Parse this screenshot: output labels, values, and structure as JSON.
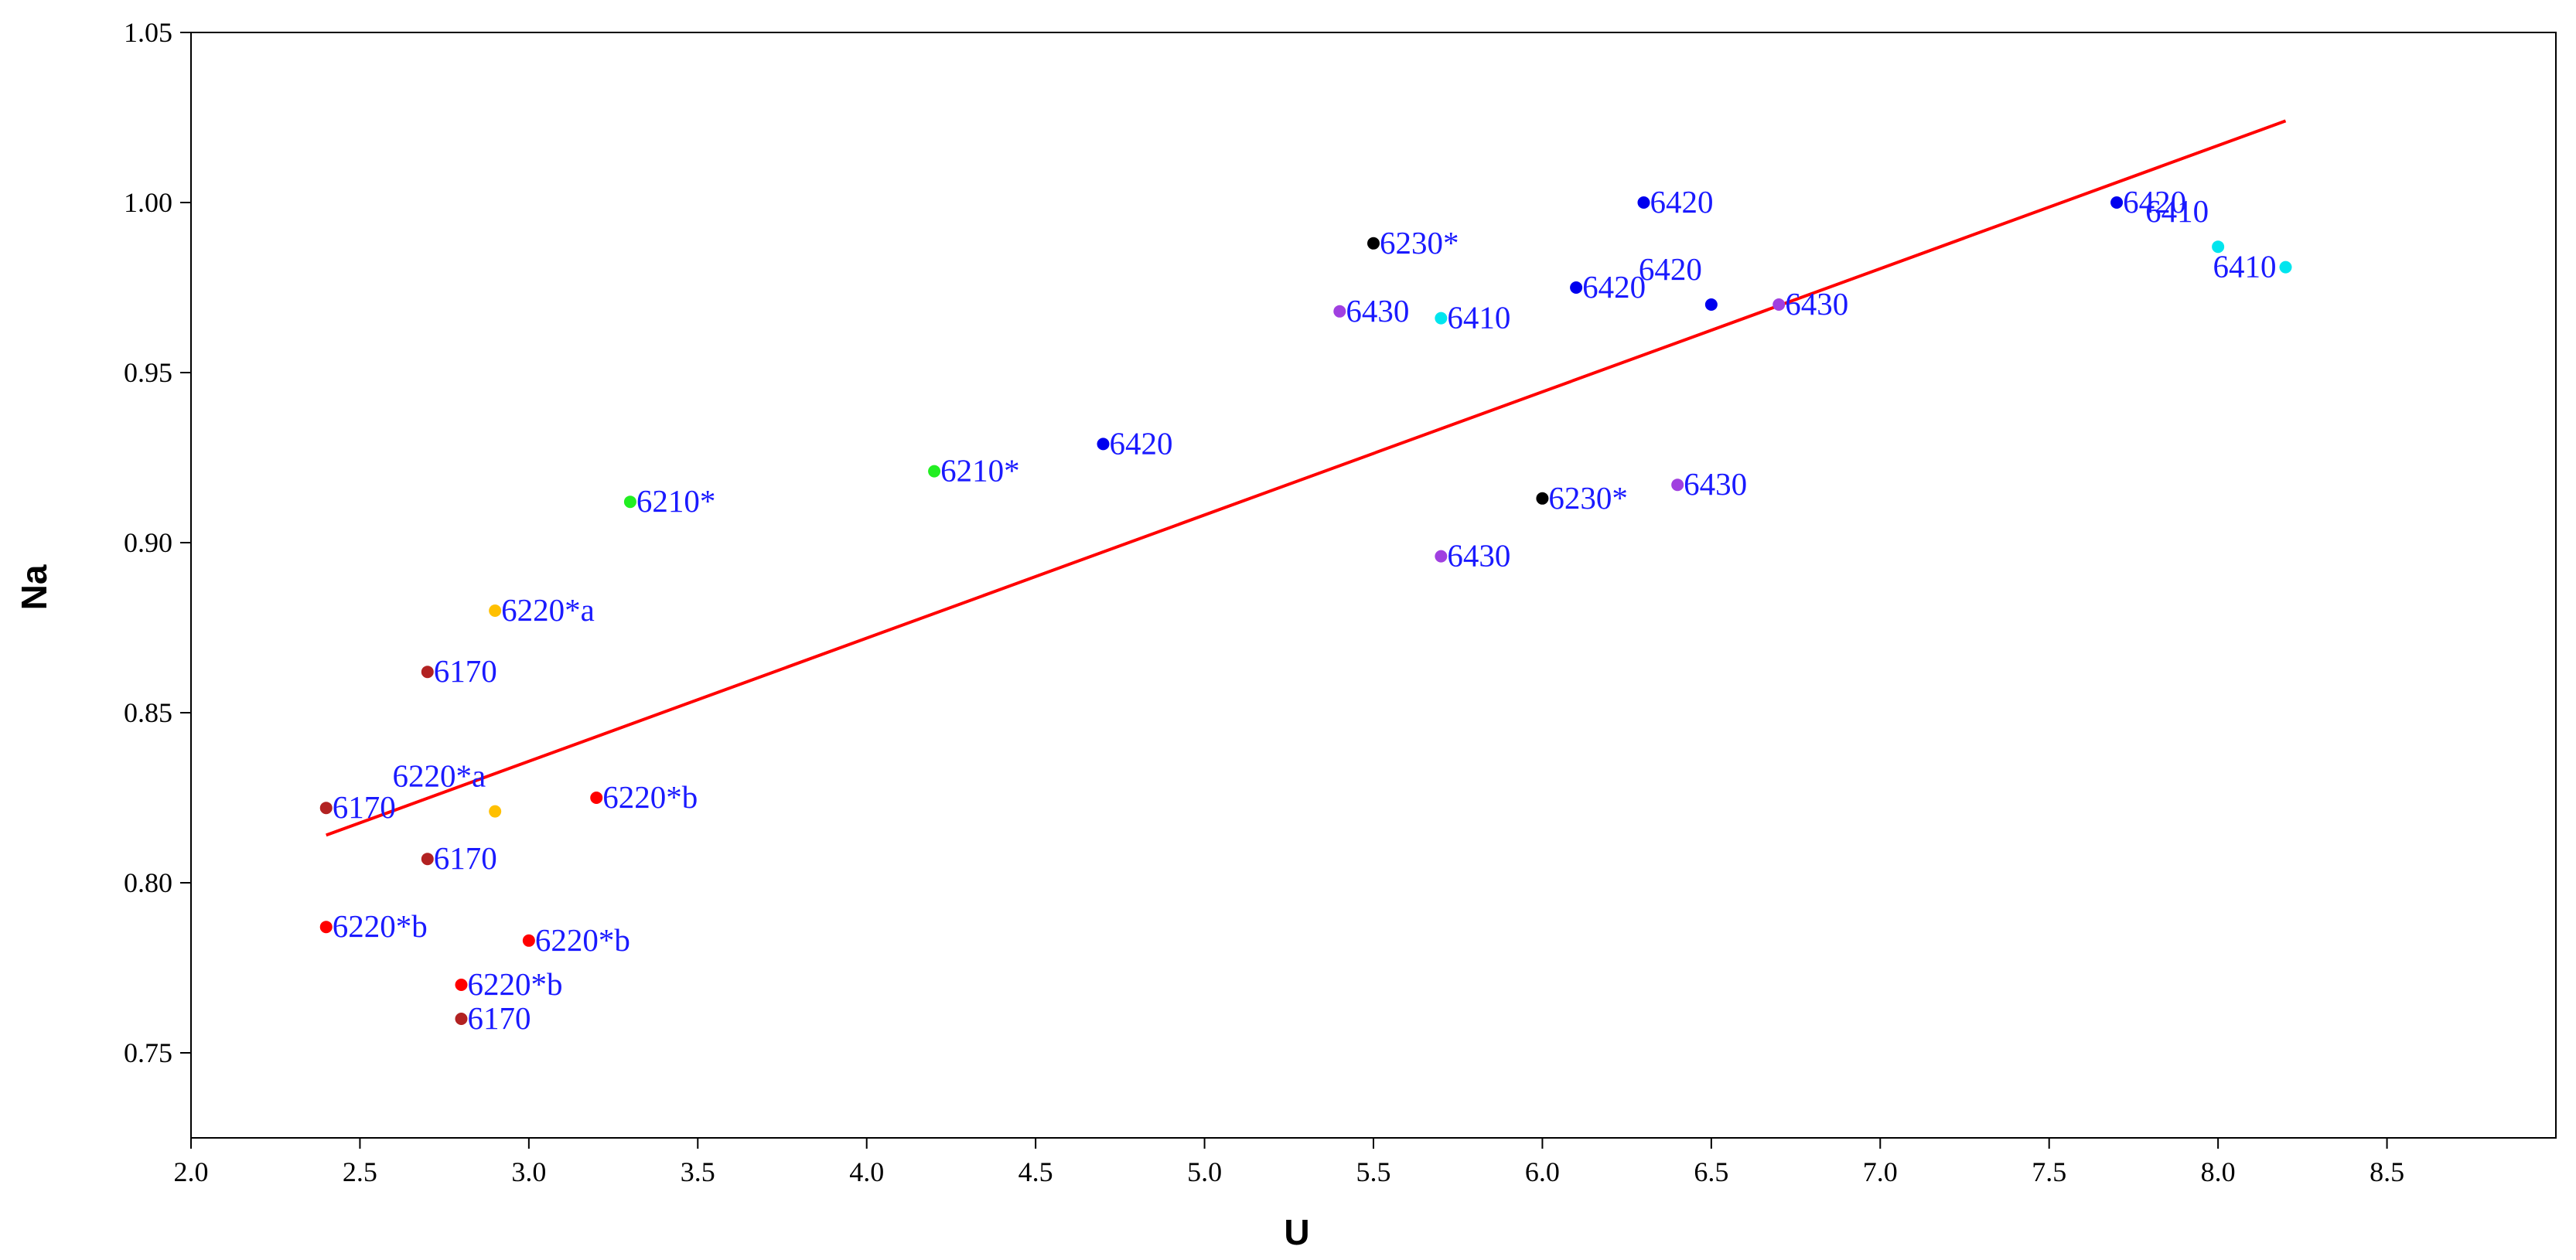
{
  "chart_data": {
    "type": "scatter",
    "title": "",
    "xlabel": "U",
    "ylabel": "Na",
    "xlim": [
      2.0,
      9.0
    ],
    "ylim": [
      0.725,
      1.05
    ],
    "x_ticks": [
      "2.0",
      "2.5",
      "3.0",
      "3.5",
      "4.0",
      "4.5",
      "5.0",
      "5.5",
      "6.0",
      "6.5",
      "7.0",
      "7.5",
      "8.0",
      "8.5"
    ],
    "x_tick_values": [
      2.0,
      2.5,
      3.0,
      3.5,
      4.0,
      4.5,
      5.0,
      5.5,
      6.0,
      6.5,
      7.0,
      7.5,
      8.0,
      8.5
    ],
    "y_ticks": [
      "0.75",
      "0.80",
      "0.85",
      "0.90",
      "0.95",
      "1.00",
      "1.05"
    ],
    "y_tick_values": [
      0.75,
      0.8,
      0.85,
      0.9,
      0.95,
      1.0,
      1.05
    ],
    "grid": false,
    "label_color": "#1a1aff",
    "trendline": {
      "color": "#ff0000",
      "x": [
        2.4,
        8.2
      ],
      "y": [
        0.814,
        1.024
      ]
    },
    "points": [
      {
        "x": 2.4,
        "y": 0.822,
        "label": "6170",
        "color": "#b22222",
        "label_pos": "right"
      },
      {
        "x": 2.7,
        "y": 0.862,
        "label": "6170",
        "color": "#b22222",
        "label_pos": "right"
      },
      {
        "x": 2.7,
        "y": 0.807,
        "label": "6170",
        "color": "#b22222",
        "label_pos": "right"
      },
      {
        "x": 2.8,
        "y": 0.76,
        "label": "6170",
        "color": "#b22222",
        "label_pos": "right"
      },
      {
        "x": 2.9,
        "y": 0.88,
        "label": "6220*a",
        "color": "#ffc000",
        "label_pos": "right"
      },
      {
        "x": 2.9,
        "y": 0.821,
        "label": "6220*a",
        "color": "#ffc000",
        "label_pos": "above-left"
      },
      {
        "x": 2.4,
        "y": 0.787,
        "label": "6220*b",
        "color": "#ff0000",
        "label_pos": "right"
      },
      {
        "x": 2.8,
        "y": 0.77,
        "label": "6220*b",
        "color": "#ff0000",
        "label_pos": "right"
      },
      {
        "x": 3.0,
        "y": 0.783,
        "label": "6220*b",
        "color": "#ff0000",
        "label_pos": "right"
      },
      {
        "x": 3.2,
        "y": 0.825,
        "label": "6220*b",
        "color": "#ff0000",
        "label_pos": "right"
      },
      {
        "x": 3.3,
        "y": 0.912,
        "label": "6210*",
        "color": "#22ee22",
        "label_pos": "right"
      },
      {
        "x": 4.2,
        "y": 0.921,
        "label": "6210*",
        "color": "#22ee22",
        "label_pos": "right"
      },
      {
        "x": 4.7,
        "y": 0.929,
        "label": "6420",
        "color": "#0000ee",
        "label_pos": "right"
      },
      {
        "x": 5.5,
        "y": 0.988,
        "label": "6230*",
        "color": "#000000",
        "label_pos": "right"
      },
      {
        "x": 6.0,
        "y": 0.913,
        "label": "6230*",
        "color": "#000000",
        "label_pos": "right"
      },
      {
        "x": 5.4,
        "y": 0.968,
        "label": "6430",
        "color": "#a040e0",
        "label_pos": "right"
      },
      {
        "x": 5.7,
        "y": 0.896,
        "label": "6430",
        "color": "#a040e0",
        "label_pos": "right"
      },
      {
        "x": 6.4,
        "y": 0.917,
        "label": "6430",
        "color": "#a040e0",
        "label_pos": "right"
      },
      {
        "x": 6.7,
        "y": 0.97,
        "label": "6430",
        "color": "#a040e0",
        "label_pos": "right"
      },
      {
        "x": 5.7,
        "y": 0.966,
        "label": "6410",
        "color": "#00e5ee",
        "label_pos": "right"
      },
      {
        "x": 6.1,
        "y": 0.975,
        "label": "6420",
        "color": "#0000ee",
        "label_pos": "right"
      },
      {
        "x": 6.3,
        "y": 1.0,
        "label": "6420",
        "color": "#0000ee",
        "label_pos": "right"
      },
      {
        "x": 6.5,
        "y": 0.97,
        "label": "6420",
        "color": "#0000ee",
        "label_pos": "above-left"
      },
      {
        "x": 7.7,
        "y": 1.0,
        "label": "6420",
        "color": "#0000ee",
        "label_pos": "right"
      },
      {
        "x": 8.0,
        "y": 0.987,
        "label": "6410",
        "color": "#00e5ee",
        "label_pos": "above-left"
      },
      {
        "x": 8.2,
        "y": 0.981,
        "label": "6410",
        "color": "#00e5ee",
        "label_pos": "left"
      }
    ]
  }
}
